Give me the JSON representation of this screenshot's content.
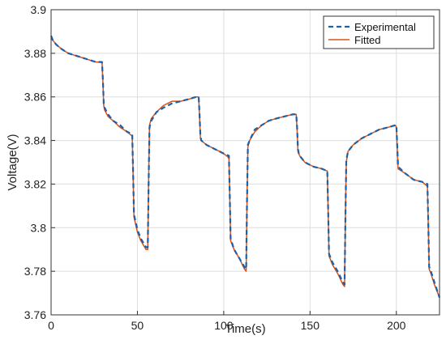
{
  "chart_data": {
    "type": "line",
    "title": "",
    "xlabel": "Time(s)",
    "ylabel": "Voltage(V)",
    "xlim": [
      0,
      225
    ],
    "ylim": [
      3.76,
      3.9
    ],
    "xticks": [
      0,
      50,
      100,
      150,
      200
    ],
    "xtick_labels": [
      "0",
      "50",
      "100",
      "150",
      "200"
    ],
    "yticks": [
      3.76,
      3.78,
      3.8,
      3.82,
      3.84,
      3.86,
      3.88,
      3.9
    ],
    "ytick_labels": [
      "3.76",
      "3.78",
      "3.8",
      "3.82",
      "3.84",
      "3.86",
      "3.88",
      "3.9"
    ],
    "grid": true,
    "legend_position": "top-right",
    "colors": {
      "experimental": "#1f5fa8",
      "fitted": "#d95319",
      "grid": "#dedede",
      "axis": "#333333"
    },
    "series": [
      {
        "name": "Experimental",
        "style": "dashed",
        "x": [
          0,
          1,
          3,
          6,
          10,
          14,
          18,
          22,
          26,
          29.5,
          30,
          30.5,
          31,
          33,
          36,
          40,
          44,
          47,
          47.5,
          48,
          50,
          52,
          55,
          56,
          56.5,
          57,
          58,
          61,
          65,
          70,
          75,
          80,
          84,
          85.5,
          86,
          86.5,
          87,
          90,
          95,
          100,
          103,
          103.5,
          104,
          106,
          109,
          112,
          113,
          113.5,
          114,
          115,
          118,
          122,
          126,
          130,
          135,
          140,
          142,
          142.5,
          143,
          143.5,
          144,
          147,
          152,
          157,
          160,
          160.5,
          161,
          163,
          166,
          169,
          170,
          170.5,
          171,
          172,
          175,
          180,
          185,
          190,
          195,
          199.5,
          200,
          200.5,
          201,
          205,
          210,
          215,
          218,
          218.5,
          219,
          220,
          222,
          225
        ],
        "y": [
          3.888,
          3.886,
          3.884,
          3.882,
          3.88,
          3.879,
          3.878,
          3.877,
          3.876,
          3.876,
          3.868,
          3.857,
          3.855,
          3.852,
          3.849,
          3.847,
          3.844,
          3.843,
          3.826,
          3.806,
          3.799,
          3.795,
          3.791,
          3.791,
          3.82,
          3.846,
          3.849,
          3.853,
          3.855,
          3.857,
          3.858,
          3.859,
          3.86,
          3.86,
          3.852,
          3.842,
          3.84,
          3.838,
          3.836,
          3.834,
          3.833,
          3.815,
          3.795,
          3.79,
          3.786,
          3.782,
          3.781,
          3.812,
          3.838,
          3.84,
          3.845,
          3.847,
          3.849,
          3.85,
          3.851,
          3.852,
          3.852,
          3.846,
          3.836,
          3.834,
          3.833,
          3.83,
          3.828,
          3.827,
          3.826,
          3.808,
          3.788,
          3.784,
          3.78,
          3.775,
          3.774,
          3.805,
          3.831,
          3.835,
          3.838,
          3.841,
          3.843,
          3.845,
          3.846,
          3.847,
          3.847,
          3.838,
          3.828,
          3.825,
          3.822,
          3.821,
          3.82,
          3.802,
          3.782,
          3.78,
          3.775,
          3.768
        ]
      },
      {
        "name": "Fitted",
        "style": "solid",
        "x": [
          0,
          1,
          3,
          6,
          10,
          14,
          18,
          22,
          26,
          29.5,
          30,
          30.5,
          31,
          33,
          36,
          40,
          44,
          47,
          47.5,
          48,
          50,
          52,
          55,
          56,
          56.5,
          57,
          58,
          61,
          65,
          70,
          75,
          80,
          84,
          85.5,
          86,
          86.5,
          87,
          90,
          95,
          100,
          103,
          103.5,
          104,
          106,
          109,
          112,
          113,
          113.5,
          114,
          115,
          118,
          122,
          126,
          130,
          135,
          140,
          142,
          142.5,
          143,
          143.5,
          144,
          147,
          152,
          157,
          160,
          160.5,
          161,
          163,
          166,
          169,
          170,
          170.5,
          171,
          172,
          175,
          180,
          185,
          190,
          195,
          199.5,
          200,
          200.5,
          201,
          205,
          210,
          215,
          218,
          218.5,
          219,
          220,
          222,
          225
        ],
        "y": [
          3.887,
          3.886,
          3.884,
          3.882,
          3.88,
          3.879,
          3.878,
          3.877,
          3.876,
          3.876,
          3.867,
          3.856,
          3.854,
          3.851,
          3.849,
          3.846,
          3.844,
          3.842,
          3.825,
          3.805,
          3.798,
          3.794,
          3.79,
          3.79,
          3.822,
          3.847,
          3.85,
          3.853,
          3.856,
          3.858,
          3.858,
          3.859,
          3.86,
          3.86,
          3.851,
          3.841,
          3.84,
          3.838,
          3.836,
          3.834,
          3.832,
          3.814,
          3.794,
          3.79,
          3.786,
          3.781,
          3.78,
          3.813,
          3.837,
          3.84,
          3.844,
          3.847,
          3.849,
          3.85,
          3.851,
          3.852,
          3.852,
          3.845,
          3.835,
          3.834,
          3.833,
          3.83,
          3.828,
          3.827,
          3.826,
          3.807,
          3.787,
          3.783,
          3.779,
          3.774,
          3.773,
          3.806,
          3.83,
          3.835,
          3.838,
          3.841,
          3.843,
          3.845,
          3.846,
          3.847,
          3.846,
          3.837,
          3.827,
          3.825,
          3.822,
          3.821,
          3.819,
          3.801,
          3.781,
          3.779,
          3.774,
          3.768
        ]
      }
    ]
  }
}
